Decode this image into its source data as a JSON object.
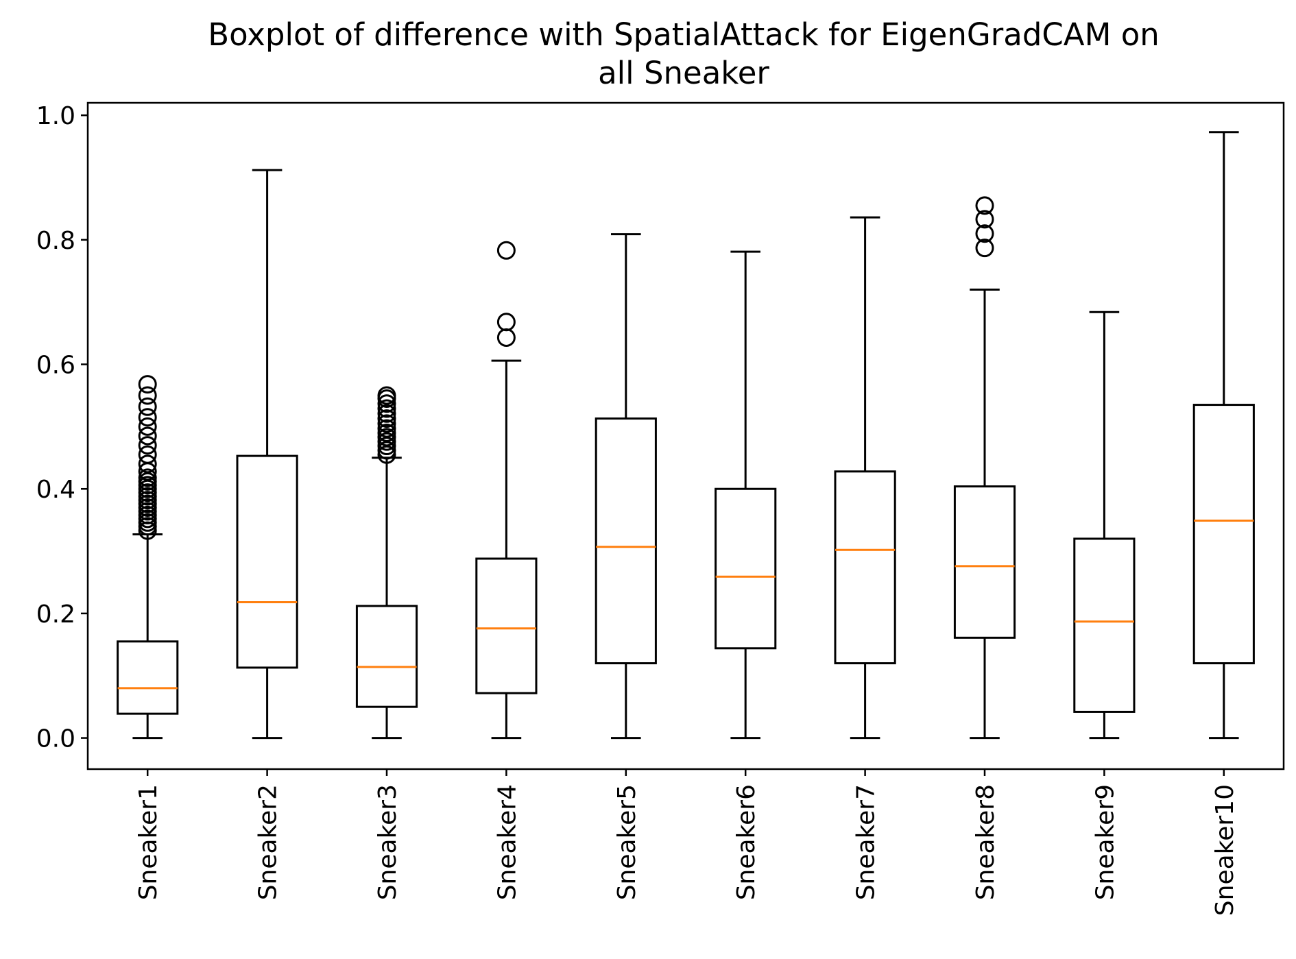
{
  "chart_data": {
    "type": "box",
    "title_line1": "Boxplot of difference with SpatialAttack for EigenGradCAM on",
    "title_line2": "all Sneaker",
    "xlabel": "",
    "ylabel": "",
    "ylim": [
      -0.05,
      1.02
    ],
    "yticks": [
      0.0,
      0.2,
      0.4,
      0.6,
      0.8,
      1.0
    ],
    "ytick_labels": [
      "0.0",
      "0.2",
      "0.4",
      "0.6",
      "0.8",
      "1.0"
    ],
    "grid": false,
    "colors": {
      "box": "#000000",
      "median": "#ff7f0e",
      "flier": "#000000"
    },
    "categories": [
      "Sneaker1",
      "Sneaker2",
      "Sneaker3",
      "Sneaker4",
      "Sneaker5",
      "Sneaker6",
      "Sneaker7",
      "Sneaker8",
      "Sneaker9",
      "Sneaker10"
    ],
    "boxes": [
      {
        "whislo": 0.0,
        "q1": 0.039,
        "med": 0.08,
        "q3": 0.155,
        "whishi": 0.327,
        "fliers": [
          0.333,
          0.34,
          0.346,
          0.352,
          0.358,
          0.364,
          0.37,
          0.376,
          0.382,
          0.388,
          0.394,
          0.4,
          0.406,
          0.412,
          0.418,
          0.428,
          0.44,
          0.455,
          0.47,
          0.485,
          0.5,
          0.515,
          0.532,
          0.55,
          0.568
        ]
      },
      {
        "whislo": 0.0,
        "q1": 0.113,
        "med": 0.218,
        "q3": 0.453,
        "whishi": 0.912,
        "fliers": []
      },
      {
        "whislo": 0.0,
        "q1": 0.05,
        "med": 0.114,
        "q3": 0.212,
        "whishi": 0.45,
        "fliers": [
          0.455,
          0.462,
          0.469,
          0.476,
          0.483,
          0.49,
          0.497,
          0.505,
          0.513,
          0.521,
          0.529,
          0.537,
          0.545,
          0.55
        ]
      },
      {
        "whislo": 0.0,
        "q1": 0.072,
        "med": 0.176,
        "q3": 0.288,
        "whishi": 0.606,
        "fliers": [
          0.643,
          0.668,
          0.783
        ]
      },
      {
        "whislo": 0.0,
        "q1": 0.12,
        "med": 0.307,
        "q3": 0.513,
        "whishi": 0.809,
        "fliers": []
      },
      {
        "whislo": 0.0,
        "q1": 0.144,
        "med": 0.259,
        "q3": 0.4,
        "whishi": 0.781,
        "fliers": []
      },
      {
        "whislo": 0.0,
        "q1": 0.12,
        "med": 0.302,
        "q3": 0.428,
        "whishi": 0.836,
        "fliers": []
      },
      {
        "whislo": 0.0,
        "q1": 0.161,
        "med": 0.276,
        "q3": 0.404,
        "whishi": 0.72,
        "fliers": [
          0.787,
          0.81,
          0.833,
          0.855
        ]
      },
      {
        "whislo": 0.0,
        "q1": 0.042,
        "med": 0.187,
        "q3": 0.32,
        "whishi": 0.684,
        "fliers": []
      },
      {
        "whislo": 0.0,
        "q1": 0.12,
        "med": 0.349,
        "q3": 0.535,
        "whishi": 0.973,
        "fliers": []
      }
    ]
  }
}
